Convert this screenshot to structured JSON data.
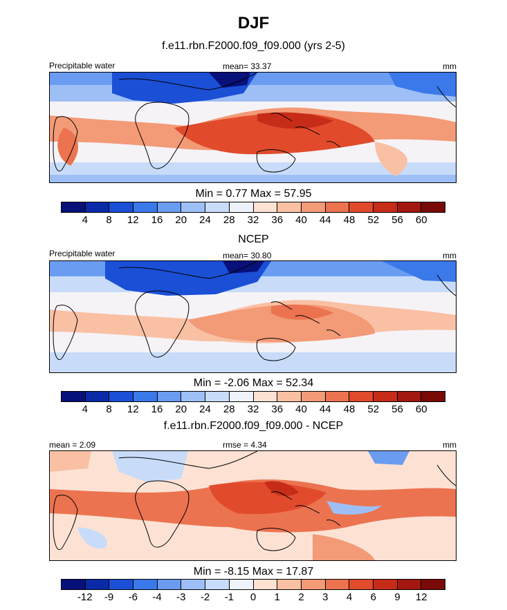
{
  "figure": {
    "season": "DJF"
  },
  "panels": [
    {
      "title": "f.e11.rbn.F2000.f09_f09.000 (yrs 2-5)",
      "left_label": "Precipitable water",
      "center_label": "mean=  33.37",
      "right_label": "mm",
      "minmax": "Min =   0.77 Max =  57.95",
      "type": "abs"
    },
    {
      "title": "NCEP",
      "left_label": "Precipitable water",
      "center_label": "mean=  30.80",
      "right_label": "mm",
      "minmax": "Min =  -2.06 Max =  52.34",
      "type": "abs"
    },
    {
      "title": "f.e11.rbn.F2000.f09_f09.000 - NCEP",
      "left_label": "mean =   2.09",
      "center_label": "rmse =   4.34",
      "right_label": "mm",
      "minmax": "Min =  -8.15 Max =  17.87",
      "type": "diff"
    }
  ],
  "colorbars": {
    "abs": {
      "levels": [
        "4",
        "8",
        "12",
        "16",
        "20",
        "24",
        "28",
        "32",
        "36",
        "40",
        "44",
        "48",
        "52",
        "56",
        "60"
      ],
      "colors": [
        "#08107a",
        "#0a2aa8",
        "#1a4fd6",
        "#3b78ea",
        "#6a9cf2",
        "#9ebff6",
        "#c8dcfa",
        "#eef2fb",
        "#fde2d4",
        "#f9c0a4",
        "#f39a77",
        "#ec7350",
        "#e14b2c",
        "#c72c18",
        "#a3180e",
        "#7a0a08"
      ]
    },
    "diff": {
      "levels": [
        "-12",
        "-9",
        "-6",
        "-4",
        "-3",
        "-2",
        "-1",
        "0",
        "1",
        "2",
        "3",
        "4",
        "6",
        "9",
        "12"
      ],
      "colors": [
        "#08107a",
        "#0a2aa8",
        "#1a4fd6",
        "#3b78ea",
        "#6a9cf2",
        "#9ebff6",
        "#c8dcfa",
        "#eef2fb",
        "#fde2d4",
        "#f9c0a4",
        "#f39a77",
        "#ec7350",
        "#e14b2c",
        "#c72c18",
        "#a3180e",
        "#7a0a08"
      ]
    }
  }
}
